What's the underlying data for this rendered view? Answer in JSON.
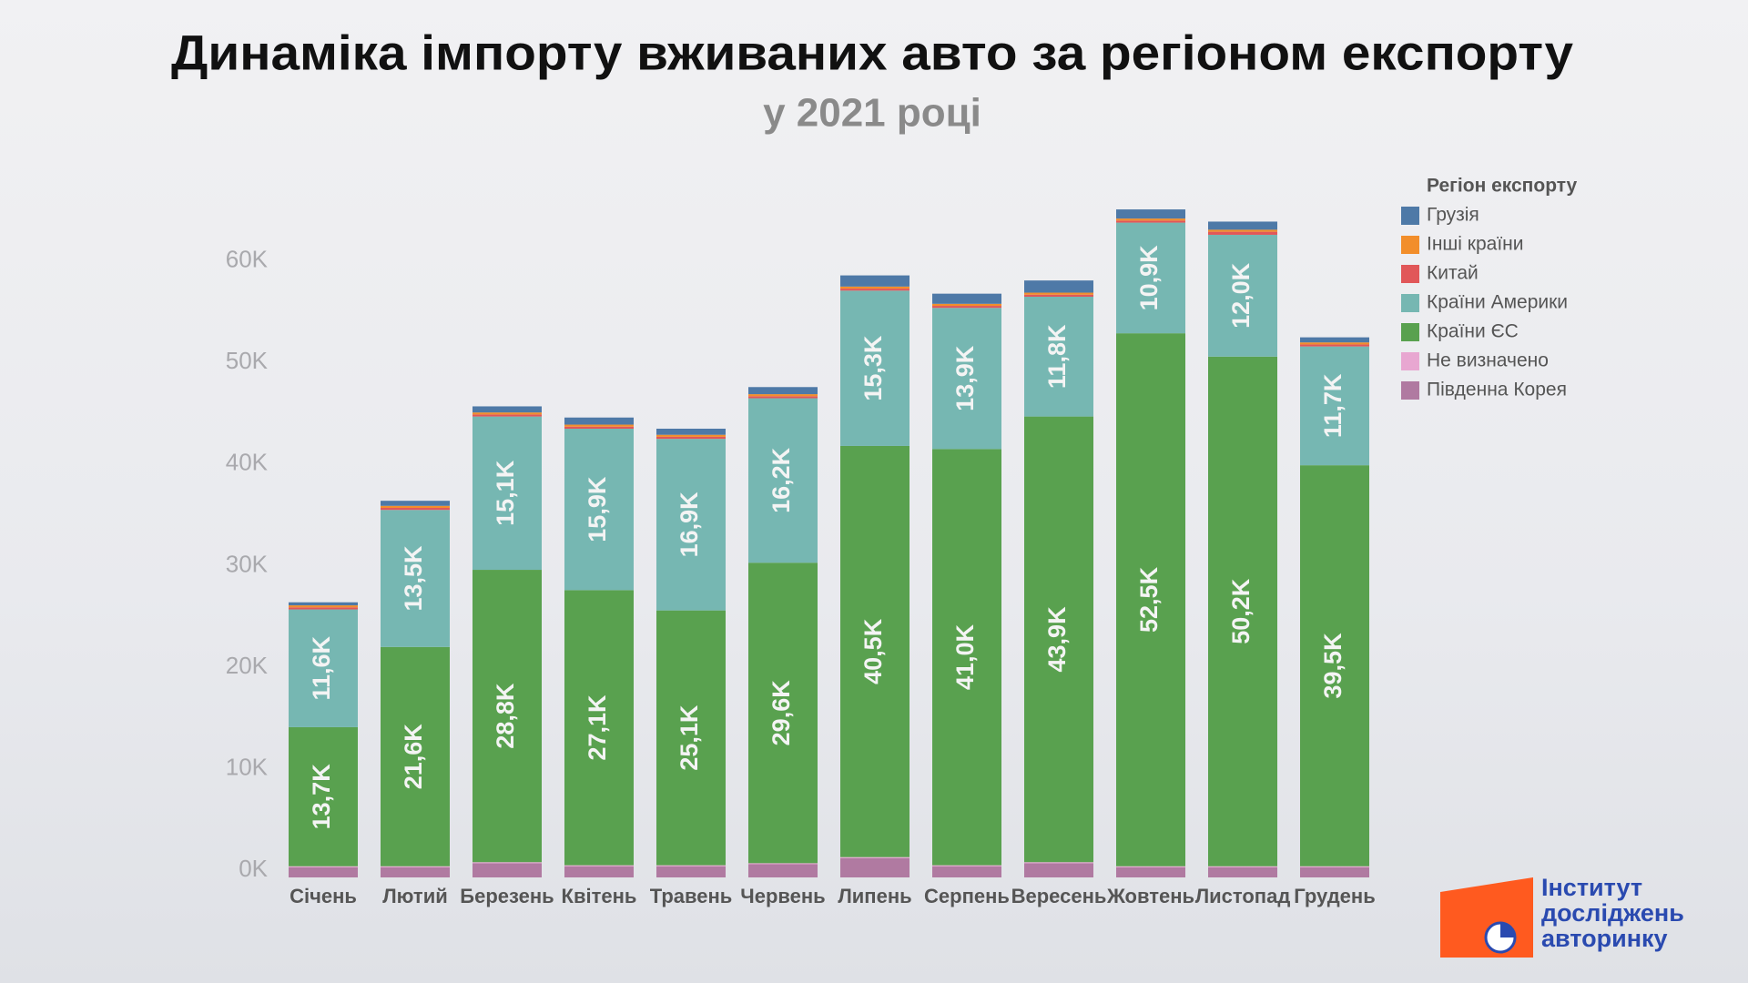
{
  "chart_data": {
    "type": "stacked_bar",
    "title": "Динаміка імпорту вживаних авто за регіоном експорту",
    "subtitle": "у 2021 році",
    "legend_title": "Регіон експорту",
    "legend": "top-right",
    "grid": false,
    "categories": [
      "Січень",
      "Лютий",
      "Березень",
      "Квітень",
      "Травень",
      "Червень",
      "Липень",
      "Серпень",
      "Вересень",
      "Жовтень",
      "Листопад",
      "Грудень"
    ],
    "ylim": [
      0,
      65
    ],
    "yticks": [
      {
        "value": 0,
        "label": "0K"
      },
      {
        "value": 10,
        "label": "10K"
      },
      {
        "value": 20,
        "label": "20K"
      },
      {
        "value": 30,
        "label": "30K"
      },
      {
        "value": 40,
        "label": "40K"
      },
      {
        "value": 50,
        "label": "50K"
      },
      {
        "value": 60,
        "label": "60K"
      }
    ],
    "series": [
      {
        "name": "Грузія",
        "color": "#4e79a7",
        "values": [
          0.3,
          0.5,
          0.6,
          0.7,
          0.6,
          0.7,
          1.1,
          1.0,
          1.2,
          0.9,
          0.8,
          0.5
        ]
      },
      {
        "name": "Інші країни",
        "color": "#f28e2b",
        "values": [
          0.2,
          0.2,
          0.2,
          0.2,
          0.2,
          0.2,
          0.2,
          0.2,
          0.2,
          0.2,
          0.2,
          0.2
        ]
      },
      {
        "name": "Китай",
        "color": "#e15759",
        "values": [
          0.2,
          0.2,
          0.2,
          0.2,
          0.2,
          0.2,
          0.2,
          0.2,
          0.2,
          0.2,
          0.3,
          0.2
        ]
      },
      {
        "name": "Країни Америки",
        "color": "#76b7b2",
        "values": [
          11.6,
          13.5,
          15.1,
          15.9,
          16.9,
          16.2,
          15.3,
          13.9,
          11.8,
          10.9,
          12.0,
          11.7
        ],
        "value_labels": [
          "11,6K",
          "13,5K",
          "15,1K",
          "15,9K",
          "16,9K",
          "16,2K",
          "15,3K",
          "13,9K",
          "11,8K",
          "10,9K",
          "12,0K",
          "11,7K"
        ]
      },
      {
        "name": "Країни ЄС",
        "color": "#59a14f",
        "values": [
          13.7,
          21.6,
          28.8,
          27.1,
          25.1,
          29.6,
          40.5,
          41.0,
          43.9,
          52.5,
          50.2,
          39.5
        ],
        "value_labels": [
          "13,7K",
          "21,6K",
          "28,8K",
          "27,1K",
          "25,1K",
          "29,6K",
          "40,5K",
          "41,0K",
          "43,9K",
          "52,5K",
          "50,2K",
          "39,5K"
        ]
      },
      {
        "name": "Не визначено",
        "color": "#e8a7d1",
        "values": [
          0.1,
          0.1,
          0.1,
          0.1,
          0.1,
          0.1,
          0.1,
          0.1,
          0.1,
          0.1,
          0.1,
          0.1
        ]
      },
      {
        "name": "Південна Корея",
        "color": "#b07aa1",
        "values": [
          1.0,
          1.0,
          1.4,
          1.1,
          1.1,
          1.3,
          1.9,
          1.1,
          1.4,
          1.0,
          1.0,
          1.0
        ]
      }
    ]
  },
  "logo": {
    "lines": [
      "Інститут",
      "досліджень",
      "авторинку"
    ]
  }
}
